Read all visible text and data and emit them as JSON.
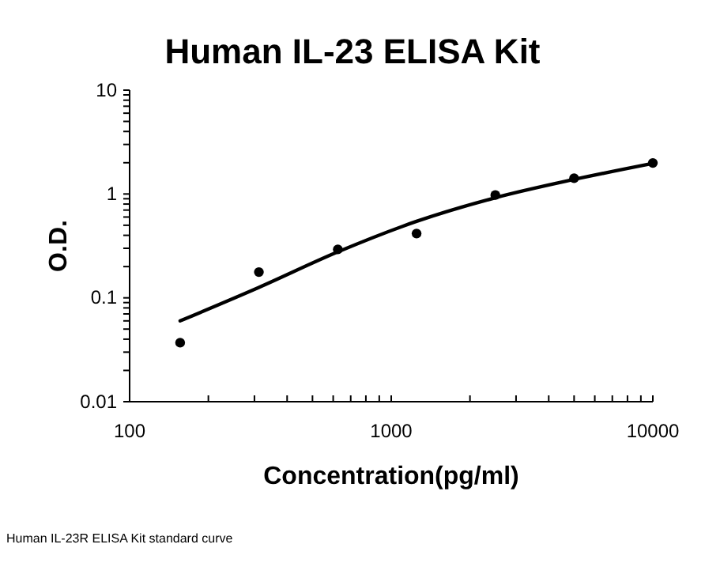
{
  "chart_data": {
    "type": "scatter",
    "title": "Human IL-23 ELISA Kit",
    "xlabel": "Concentration(pg/ml)",
    "ylabel": "O.D.",
    "log": "xy",
    "grid": false,
    "xlim": [
      100,
      10000
    ],
    "ylim": [
      0.01,
      10
    ],
    "xticks": [
      100,
      {
        "value": 200,
        "label": null
      },
      {
        "value": 300,
        "label": null
      },
      {
        "value": 400,
        "label": null
      },
      {
        "value": 500,
        "label": null
      },
      {
        "value": 600,
        "label": null
      },
      {
        "value": 700,
        "label": null
      },
      {
        "value": 800,
        "label": null
      },
      {
        "value": 900,
        "label": null
      },
      1000,
      {
        "value": 2000,
        "label": null
      },
      {
        "value": 3000,
        "label": null
      },
      {
        "value": 4000,
        "label": null
      },
      {
        "value": 5000,
        "label": null
      },
      {
        "value": 6000,
        "label": null
      },
      {
        "value": 7000,
        "label": null
      },
      {
        "value": 8000,
        "label": null
      },
      {
        "value": 9000,
        "label": null
      },
      10000
    ],
    "yticks": [
      0.01,
      {
        "value": 0.02,
        "label": null
      },
      {
        "value": 0.03,
        "label": null
      },
      {
        "value": 0.04,
        "label": null
      },
      {
        "value": 0.05,
        "label": null
      },
      {
        "value": 0.06,
        "label": null
      },
      {
        "value": 0.07,
        "label": null
      },
      {
        "value": 0.08,
        "label": null
      },
      {
        "value": 0.09,
        "label": null
      },
      0.1,
      {
        "value": 0.2,
        "label": null
      },
      {
        "value": 0.3,
        "label": null
      },
      {
        "value": 0.4,
        "label": null
      },
      {
        "value": 0.5,
        "label": null
      },
      {
        "value": 0.6,
        "label": null
      },
      {
        "value": 0.7,
        "label": null
      },
      {
        "value": 0.8,
        "label": null
      },
      {
        "value": 0.9,
        "label": null
      },
      1,
      {
        "value": 2,
        "label": null
      },
      {
        "value": 3,
        "label": null
      },
      {
        "value": 4,
        "label": null
      },
      {
        "value": 5,
        "label": null
      },
      {
        "value": 6,
        "label": null
      },
      {
        "value": 7,
        "label": null
      },
      {
        "value": 8,
        "label": null
      },
      {
        "value": 9,
        "label": null
      },
      10
    ],
    "marker": "circle",
    "series": [
      {
        "color": "#000000",
        "x": [
          156,
          312,
          625,
          1250,
          2500,
          5000,
          10000
        ],
        "values": [
          0.037,
          0.177,
          0.293,
          0.416,
          0.977,
          1.42,
          1.99
        ]
      },
      {
        "type": "line",
        "color": "#000000",
        "line_style": "solid",
        "marker": "none",
        "x": [
          156,
          312,
          625,
          1250,
          2500,
          5000,
          10000
        ],
        "values": [
          0.06,
          0.126,
          0.277,
          0.545,
          0.92,
          1.38,
          1.97
        ]
      }
    ],
    "annotations": [
      "Human IL-23R ELISA Kit standard curve"
    ]
  }
}
